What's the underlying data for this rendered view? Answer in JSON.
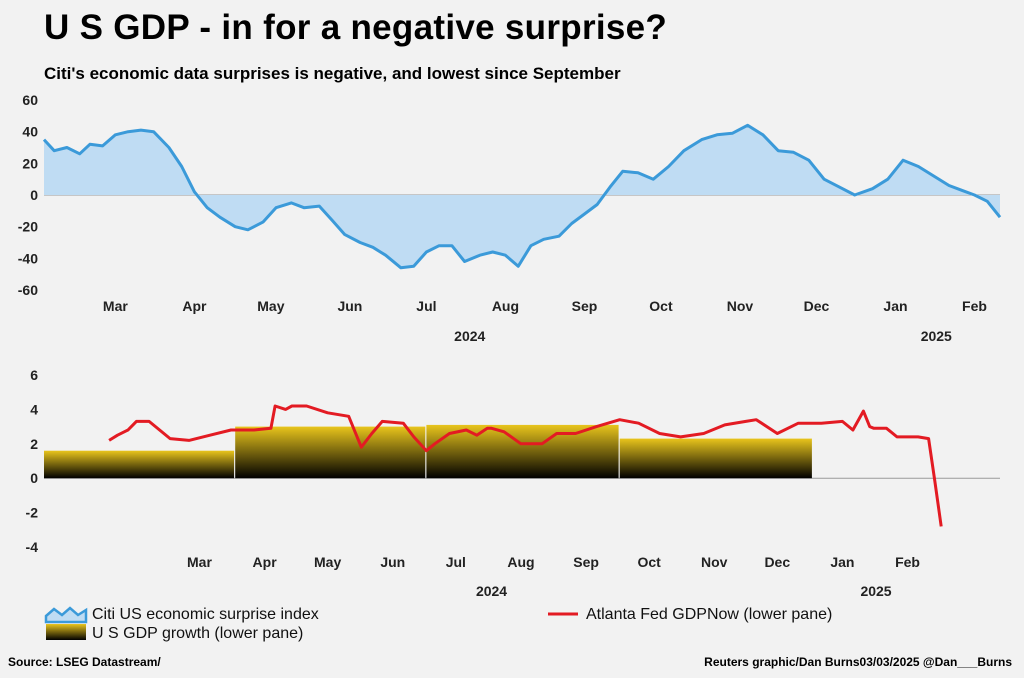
{
  "title": "U S  GDP - in for a negative surprise?",
  "subtitle": "Citi's economic data surprises is negative, and lowest since September",
  "source": "Source: LSEG Datastream/",
  "credit": "Reuters graphic/Dan Burns03/03/2025 @Dan___Burns",
  "colors": {
    "surprise_line": "#3b9ad9",
    "surprise_fill": "#bfdcf3",
    "gdpnow": "#e31b23",
    "gdp_top": "#e9c51c",
    "gdp_bottom": "#000000"
  },
  "chart_data": [
    {
      "type": "area",
      "title": "",
      "ylim": [
        -60,
        60
      ],
      "yticks": [
        "60",
        "40",
        "20",
        "0",
        "-20",
        "-40",
        "-60"
      ],
      "xtick_labels": [
        "Mar",
        "Apr",
        "May",
        "Jun",
        "Jul",
        "Aug",
        "Sep",
        "Oct",
        "Nov",
        "Dec",
        "Jan",
        "Feb"
      ],
      "year_labels": [
        "2024",
        "2025"
      ],
      "grid": false,
      "series": [
        {
          "name": "Citi US economic surprise index",
          "x": [
            "2024-02-16",
            "2024-02-20",
            "2024-02-25",
            "2024-03-01",
            "2024-03-05",
            "2024-03-10",
            "2024-03-15",
            "2024-03-20",
            "2024-03-25",
            "2024-03-30",
            "2024-04-05",
            "2024-04-10",
            "2024-04-15",
            "2024-04-20",
            "2024-04-25",
            "2024-05-01",
            "2024-05-06",
            "2024-05-12",
            "2024-05-17",
            "2024-05-23",
            "2024-05-28",
            "2024-06-03",
            "2024-06-08",
            "2024-06-13",
            "2024-06-19",
            "2024-06-24",
            "2024-06-29",
            "2024-07-05",
            "2024-07-10",
            "2024-07-15",
            "2024-07-20",
            "2024-07-25",
            "2024-07-30",
            "2024-08-05",
            "2024-08-10",
            "2024-08-15",
            "2024-08-20",
            "2024-08-25",
            "2024-08-30",
            "2024-09-05",
            "2024-09-10",
            "2024-09-15",
            "2024-09-20",
            "2024-09-25",
            "2024-09-30",
            "2024-10-06",
            "2024-10-12",
            "2024-10-18",
            "2024-10-24",
            "2024-10-31",
            "2024-11-06",
            "2024-11-12",
            "2024-11-18",
            "2024-11-24",
            "2024-11-30",
            "2024-12-06",
            "2024-12-12",
            "2024-12-18",
            "2024-12-24",
            "2024-12-30",
            "2025-01-06",
            "2025-01-12",
            "2025-01-18",
            "2025-01-24",
            "2025-01-30",
            "2025-02-05",
            "2025-02-10",
            "2025-02-15",
            "2025-02-20",
            "2025-02-25"
          ],
          "values": [
            35,
            28,
            30,
            26,
            32,
            31,
            38,
            40,
            41,
            40,
            30,
            18,
            2,
            -8,
            -14,
            -20,
            -22,
            -17,
            -8,
            -5,
            -8,
            -7,
            -16,
            -25,
            -30,
            -33,
            -38,
            -46,
            -45,
            -36,
            -32,
            -32,
            -42,
            -38,
            -36,
            -38,
            -45,
            -32,
            -28,
            -26,
            -18,
            -12,
            -6,
            5,
            15,
            14,
            10,
            18,
            28,
            35,
            38,
            39,
            44,
            38,
            28,
            27,
            22,
            10,
            5,
            0,
            4,
            10,
            22,
            18,
            12,
            6,
            3,
            0,
            -4,
            -14
          ]
        }
      ]
    },
    {
      "type": "line",
      "title": "",
      "ylim": [
        -4,
        6
      ],
      "yticks": [
        "6",
        "4",
        "2",
        "0",
        "-2",
        "-4"
      ],
      "xtick_labels": [
        "Mar",
        "Apr",
        "May",
        "Jun",
        "Jul",
        "Aug",
        "Sep",
        "Oct",
        "Nov",
        "Dec",
        "Jan",
        "Feb"
      ],
      "year_labels": [
        "2024",
        "2025"
      ],
      "grid": false,
      "series": [
        {
          "name": "Atlanta Fed GDPNow (lower pane)",
          "x": [
            "2024-02-01",
            "2024-02-05",
            "2024-02-10",
            "2024-02-14",
            "2024-02-20",
            "2024-03-01",
            "2024-03-10",
            "2024-03-20",
            "2024-03-30",
            "2024-04-10",
            "2024-04-18",
            "2024-04-20",
            "2024-04-25",
            "2024-04-28",
            "2024-05-05",
            "2024-05-15",
            "2024-05-25",
            "2024-05-31",
            "2024-06-05",
            "2024-06-10",
            "2024-06-20",
            "2024-06-25",
            "2024-07-01",
            "2024-07-05",
            "2024-07-12",
            "2024-07-20",
            "2024-07-25",
            "2024-07-30",
            "2024-08-01",
            "2024-08-07",
            "2024-08-15",
            "2024-08-25",
            "2024-09-01",
            "2024-09-10",
            "2024-09-20",
            "2024-10-01",
            "2024-10-10",
            "2024-10-20",
            "2024-10-30",
            "2024-11-10",
            "2024-11-20",
            "2024-11-30",
            "2024-12-05",
            "2024-12-15",
            "2024-12-25",
            "2025-01-05",
            "2025-01-15",
            "2025-01-20",
            "2025-01-25",
            "2025-01-28",
            "2025-01-30",
            "2025-02-05",
            "2025-02-10",
            "2025-02-20",
            "2025-02-25",
            "2025-02-28",
            "2025-03-03"
          ],
          "values": [
            2.2,
            2.5,
            2.8,
            3.3,
            3.3,
            2.3,
            2.2,
            2.5,
            2.8,
            2.8,
            2.9,
            4.2,
            4.0,
            4.2,
            4.2,
            3.8,
            3.6,
            1.8,
            2.6,
            3.3,
            3.2,
            2.4,
            1.6,
            2.0,
            2.6,
            2.8,
            2.5,
            2.9,
            2.9,
            2.7,
            2.0,
            2.0,
            2.6,
            2.6,
            3.0,
            3.4,
            3.2,
            2.6,
            2.4,
            2.6,
            3.1,
            3.3,
            3.4,
            2.6,
            3.2,
            3.2,
            3.3,
            2.8,
            3.9,
            3.0,
            2.9,
            2.9,
            2.4,
            2.4,
            2.3,
            -0.2,
            -2.8
          ]
        },
        {
          "name": "U S  GDP growth (lower pane)",
          "type": "bar",
          "periods": [
            {
              "start": "2024-01-01",
              "end": "2024-03-31",
              "value": 1.6
            },
            {
              "start": "2024-04-01",
              "end": "2024-06-30",
              "value": 3.0
            },
            {
              "start": "2024-07-01",
              "end": "2024-09-30",
              "value": 3.1
            },
            {
              "start": "2024-10-01",
              "end": "2024-12-31",
              "value": 2.3
            }
          ]
        }
      ]
    }
  ]
}
